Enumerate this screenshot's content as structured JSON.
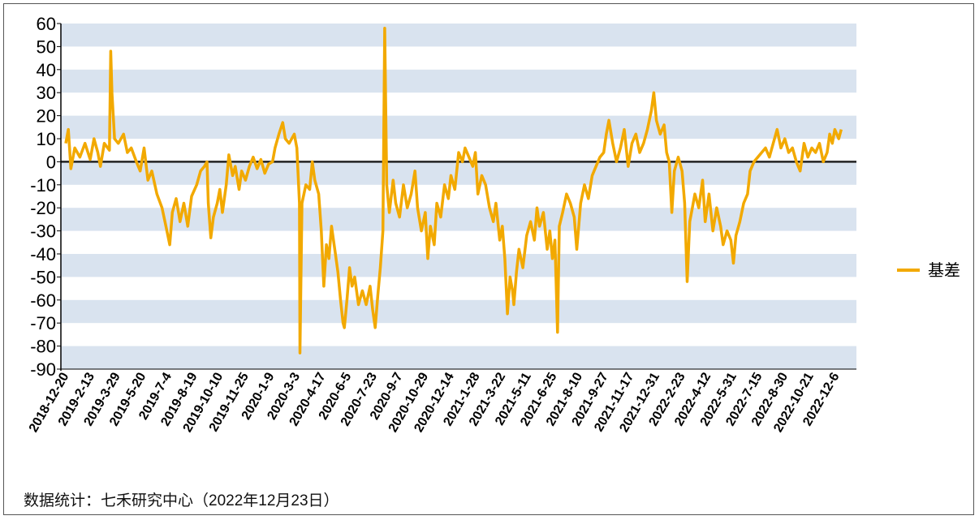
{
  "chart_data": {
    "type": "line",
    "title": "",
    "xlabel": "",
    "ylabel": "",
    "ylim": [
      -90,
      60
    ],
    "y_ticks": [
      60,
      50,
      40,
      30,
      20,
      10,
      0,
      -10,
      -20,
      -30,
      -40,
      -50,
      -60,
      -70,
      -80,
      -90
    ],
    "x_tick_labels": [
      "2018-12-20",
      "2019-2-13",
      "2019-3-29",
      "2019-5-20",
      "2019-7-4",
      "2019-8-19",
      "2019-10-10",
      "2019-11-25",
      "2020-1-9",
      "2020-3-3",
      "2020-4-17",
      "2020-6-5",
      "2020-7-23",
      "2020-9-7",
      "2020-10-29",
      "2020-12-14",
      "2021-1-28",
      "2021-3-22",
      "2021-5-11",
      "2021-6-25",
      "2021-8-10",
      "2021-9-27",
      "2021-11-17",
      "2021-12-31",
      "2022-2-23",
      "2022-4-12",
      "2022-5-31",
      "2022-7-15",
      "2022-8-30",
      "2022-10-21",
      "2022-12-6"
    ],
    "grid": "alternating horizontal bands",
    "legend_position": "right",
    "colors": {
      "series": "#F2A900",
      "band": "#D9E3EF",
      "zero_line": "#222222"
    },
    "series": [
      {
        "name": "基差",
        "x_index_range": [
          0,
          30.6
        ],
        "approx_points": [
          [
            0.0,
            8
          ],
          [
            0.1,
            14
          ],
          [
            0.2,
            -3
          ],
          [
            0.35,
            6
          ],
          [
            0.55,
            2
          ],
          [
            0.75,
            8
          ],
          [
            0.95,
            1
          ],
          [
            1.1,
            10
          ],
          [
            1.25,
            4
          ],
          [
            1.35,
            -2
          ],
          [
            1.5,
            8
          ],
          [
            1.7,
            5
          ],
          [
            1.75,
            48
          ],
          [
            1.8,
            30
          ],
          [
            1.9,
            10
          ],
          [
            2.05,
            8
          ],
          [
            2.25,
            12
          ],
          [
            2.4,
            4
          ],
          [
            2.55,
            6
          ],
          [
            2.75,
            0
          ],
          [
            2.9,
            -4
          ],
          [
            3.05,
            6
          ],
          [
            3.2,
            -8
          ],
          [
            3.35,
            -4
          ],
          [
            3.55,
            -14
          ],
          [
            3.75,
            -20
          ],
          [
            3.9,
            -28
          ],
          [
            4.05,
            -36
          ],
          [
            4.15,
            -22
          ],
          [
            4.3,
            -16
          ],
          [
            4.45,
            -26
          ],
          [
            4.6,
            -18
          ],
          [
            4.75,
            -28
          ],
          [
            4.9,
            -15
          ],
          [
            5.1,
            -10
          ],
          [
            5.25,
            -4
          ],
          [
            5.4,
            -2
          ],
          [
            5.5,
            0
          ],
          [
            5.55,
            -18
          ],
          [
            5.65,
            -33
          ],
          [
            5.75,
            -24
          ],
          [
            5.9,
            -18
          ],
          [
            6.0,
            -12
          ],
          [
            6.1,
            -22
          ],
          [
            6.25,
            -10
          ],
          [
            6.35,
            3
          ],
          [
            6.5,
            -6
          ],
          [
            6.6,
            -2
          ],
          [
            6.75,
            -12
          ],
          [
            6.85,
            -4
          ],
          [
            7.0,
            -8
          ],
          [
            7.15,
            -2
          ],
          [
            7.3,
            2
          ],
          [
            7.45,
            -3
          ],
          [
            7.6,
            1
          ],
          [
            7.75,
            -5
          ],
          [
            7.9,
            -1
          ],
          [
            8.05,
            0
          ],
          [
            8.15,
            6
          ],
          [
            8.3,
            12
          ],
          [
            8.45,
            17
          ],
          [
            8.55,
            10
          ],
          [
            8.7,
            8
          ],
          [
            8.9,
            12
          ],
          [
            9.0,
            6
          ],
          [
            9.1,
            -18
          ],
          [
            9.12,
            -83
          ],
          [
            9.2,
            -18
          ],
          [
            9.35,
            -10
          ],
          [
            9.5,
            -12
          ],
          [
            9.6,
            0
          ],
          [
            9.7,
            -8
          ],
          [
            9.85,
            -14
          ],
          [
            9.95,
            -30
          ],
          [
            10.05,
            -54
          ],
          [
            10.15,
            -36
          ],
          [
            10.25,
            -42
          ],
          [
            10.35,
            -28
          ],
          [
            10.5,
            -40
          ],
          [
            10.6,
            -48
          ],
          [
            10.7,
            -60
          ],
          [
            10.8,
            -70
          ],
          [
            10.85,
            -72
          ],
          [
            10.95,
            -60
          ],
          [
            11.05,
            -46
          ],
          [
            11.15,
            -54
          ],
          [
            11.25,
            -50
          ],
          [
            11.4,
            -62
          ],
          [
            11.55,
            -56
          ],
          [
            11.7,
            -62
          ],
          [
            11.85,
            -54
          ],
          [
            11.95,
            -64
          ],
          [
            12.05,
            -72
          ],
          [
            12.15,
            -58
          ],
          [
            12.25,
            -46
          ],
          [
            12.35,
            -30
          ],
          [
            12.42,
            58
          ],
          [
            12.5,
            -10
          ],
          [
            12.6,
            -22
          ],
          [
            12.75,
            -8
          ],
          [
            12.85,
            -18
          ],
          [
            13.0,
            -24
          ],
          [
            13.15,
            -10
          ],
          [
            13.3,
            -20
          ],
          [
            13.45,
            -14
          ],
          [
            13.6,
            -4
          ],
          [
            13.7,
            -20
          ],
          [
            13.85,
            -30
          ],
          [
            14.0,
            -22
          ],
          [
            14.1,
            -42
          ],
          [
            14.2,
            -28
          ],
          [
            14.35,
            -36
          ],
          [
            14.45,
            -18
          ],
          [
            14.6,
            -24
          ],
          [
            14.75,
            -10
          ],
          [
            14.9,
            -16
          ],
          [
            15.0,
            -6
          ],
          [
            15.15,
            -12
          ],
          [
            15.3,
            4
          ],
          [
            15.45,
            0
          ],
          [
            15.55,
            6
          ],
          [
            15.7,
            2
          ],
          [
            15.85,
            -2
          ],
          [
            15.95,
            4
          ],
          [
            16.05,
            -14
          ],
          [
            16.2,
            -6
          ],
          [
            16.35,
            -10
          ],
          [
            16.5,
            -20
          ],
          [
            16.65,
            -26
          ],
          [
            16.75,
            -18
          ],
          [
            16.9,
            -34
          ],
          [
            17.0,
            -28
          ],
          [
            17.1,
            -42
          ],
          [
            17.2,
            -66
          ],
          [
            17.3,
            -50
          ],
          [
            17.4,
            -56
          ],
          [
            17.45,
            -62
          ],
          [
            17.55,
            -48
          ],
          [
            17.65,
            -38
          ],
          [
            17.8,
            -46
          ],
          [
            17.95,
            -32
          ],
          [
            18.1,
            -26
          ],
          [
            18.25,
            -34
          ],
          [
            18.35,
            -20
          ],
          [
            18.45,
            -28
          ],
          [
            18.6,
            -22
          ],
          [
            18.75,
            -38
          ],
          [
            18.85,
            -30
          ],
          [
            18.95,
            -42
          ],
          [
            19.05,
            -34
          ],
          [
            19.15,
            -74
          ],
          [
            19.22,
            -28
          ],
          [
            19.35,
            -22
          ],
          [
            19.5,
            -14
          ],
          [
            19.65,
            -18
          ],
          [
            19.8,
            -24
          ],
          [
            19.9,
            -38
          ],
          [
            20.05,
            -18
          ],
          [
            20.2,
            -10
          ],
          [
            20.35,
            -16
          ],
          [
            20.5,
            -6
          ],
          [
            20.65,
            -2
          ],
          [
            20.8,
            2
          ],
          [
            20.95,
            4
          ],
          [
            21.05,
            12
          ],
          [
            21.15,
            18
          ],
          [
            21.3,
            8
          ],
          [
            21.45,
            0
          ],
          [
            21.6,
            6
          ],
          [
            21.75,
            14
          ],
          [
            21.9,
            -2
          ],
          [
            22.05,
            8
          ],
          [
            22.2,
            12
          ],
          [
            22.35,
            4
          ],
          [
            22.5,
            8
          ],
          [
            22.65,
            14
          ],
          [
            22.8,
            22
          ],
          [
            22.9,
            30
          ],
          [
            23.0,
            18
          ],
          [
            23.15,
            12
          ],
          [
            23.3,
            16
          ],
          [
            23.4,
            4
          ],
          [
            23.5,
            0
          ],
          [
            23.6,
            -22
          ],
          [
            23.7,
            -4
          ],
          [
            23.85,
            2
          ],
          [
            24.0,
            -4
          ],
          [
            24.1,
            -18
          ],
          [
            24.2,
            -52
          ],
          [
            24.3,
            -26
          ],
          [
            24.4,
            -20
          ],
          [
            24.5,
            -14
          ],
          [
            24.65,
            -20
          ],
          [
            24.8,
            -8
          ],
          [
            24.9,
            -26
          ],
          [
            25.05,
            -14
          ],
          [
            25.2,
            -30
          ],
          [
            25.35,
            -20
          ],
          [
            25.5,
            -28
          ],
          [
            25.6,
            -36
          ],
          [
            25.75,
            -30
          ],
          [
            25.9,
            -34
          ],
          [
            26.0,
            -44
          ],
          [
            26.1,
            -32
          ],
          [
            26.25,
            -26
          ],
          [
            26.4,
            -18
          ],
          [
            26.55,
            -14
          ],
          [
            26.65,
            -4
          ],
          [
            26.8,
            0
          ],
          [
            26.95,
            2
          ],
          [
            27.1,
            4
          ],
          [
            27.25,
            6
          ],
          [
            27.4,
            2
          ],
          [
            27.55,
            8
          ],
          [
            27.7,
            14
          ],
          [
            27.85,
            6
          ],
          [
            28.0,
            10
          ],
          [
            28.15,
            4
          ],
          [
            28.3,
            6
          ],
          [
            28.45,
            0
          ],
          [
            28.6,
            -4
          ],
          [
            28.75,
            8
          ],
          [
            28.9,
            2
          ],
          [
            29.05,
            6
          ],
          [
            29.2,
            4
          ],
          [
            29.35,
            8
          ],
          [
            29.5,
            0
          ],
          [
            29.65,
            4
          ],
          [
            29.75,
            12
          ],
          [
            29.85,
            8
          ],
          [
            29.95,
            14
          ],
          [
            30.1,
            10
          ],
          [
            30.2,
            14
          ]
        ]
      }
    ],
    "source_note": "数据统计：七禾研究中心（2022年12月23日）"
  }
}
